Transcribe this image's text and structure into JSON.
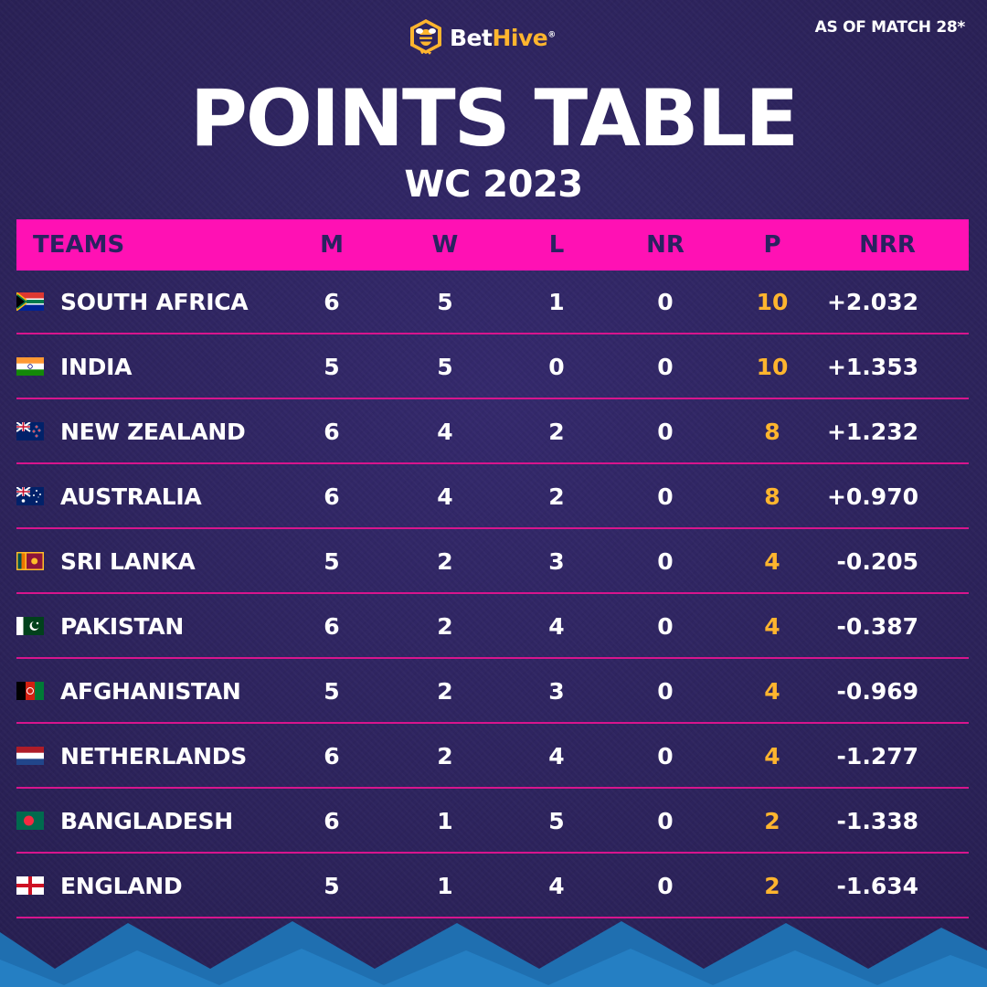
{
  "brand": {
    "name_part1": "Bet",
    "name_part2": "Hive",
    "trademark": "®"
  },
  "as_of": "AS OF MATCH 28*",
  "title": "POINTS TABLE",
  "subtitle": "WC 2023",
  "columns": {
    "teams": "TEAMS",
    "m": "M",
    "w": "W",
    "l": "L",
    "nr": "NR",
    "p": "P",
    "nrr": "NRR"
  },
  "colors": {
    "background": "#2e2562",
    "header_bg": "#ff11b4",
    "points": "#ffb52e",
    "divider": "#d7158d",
    "waves": "#1f6fb0"
  },
  "rows": [
    {
      "team": "SOUTH AFRICA",
      "flag": "south-africa",
      "m": "6",
      "w": "5",
      "l": "1",
      "nr": "0",
      "p": "10",
      "nrr": "+2.032"
    },
    {
      "team": "INDIA",
      "flag": "india",
      "m": "5",
      "w": "5",
      "l": "0",
      "nr": "0",
      "p": "10",
      "nrr": "+1.353"
    },
    {
      "team": "NEW ZEALAND",
      "flag": "new-zealand",
      "m": "6",
      "w": "4",
      "l": "2",
      "nr": "0",
      "p": "8",
      "nrr": "+1.232"
    },
    {
      "team": "AUSTRALIA",
      "flag": "australia",
      "m": "6",
      "w": "4",
      "l": "2",
      "nr": "0",
      "p": "8",
      "nrr": "+0.970"
    },
    {
      "team": "SRI LANKA",
      "flag": "sri-lanka",
      "m": "5",
      "w": "2",
      "l": "3",
      "nr": "0",
      "p": "4",
      "nrr": "-0.205"
    },
    {
      "team": "PAKISTAN",
      "flag": "pakistan",
      "m": "6",
      "w": "2",
      "l": "4",
      "nr": "0",
      "p": "4",
      "nrr": "-0.387"
    },
    {
      "team": "AFGHANISTAN",
      "flag": "afghanistan",
      "m": "5",
      "w": "2",
      "l": "3",
      "nr": "0",
      "p": "4",
      "nrr": "-0.969"
    },
    {
      "team": "NETHERLANDS",
      "flag": "netherlands",
      "m": "6",
      "w": "2",
      "l": "4",
      "nr": "0",
      "p": "4",
      "nrr": "-1.277"
    },
    {
      "team": "BANGLADESH",
      "flag": "bangladesh",
      "m": "6",
      "w": "1",
      "l": "5",
      "nr": "0",
      "p": "2",
      "nrr": "-1.338"
    },
    {
      "team": "ENGLAND",
      "flag": "england",
      "m": "5",
      "w": "1",
      "l": "4",
      "nr": "0",
      "p": "2",
      "nrr": "-1.634"
    }
  ]
}
